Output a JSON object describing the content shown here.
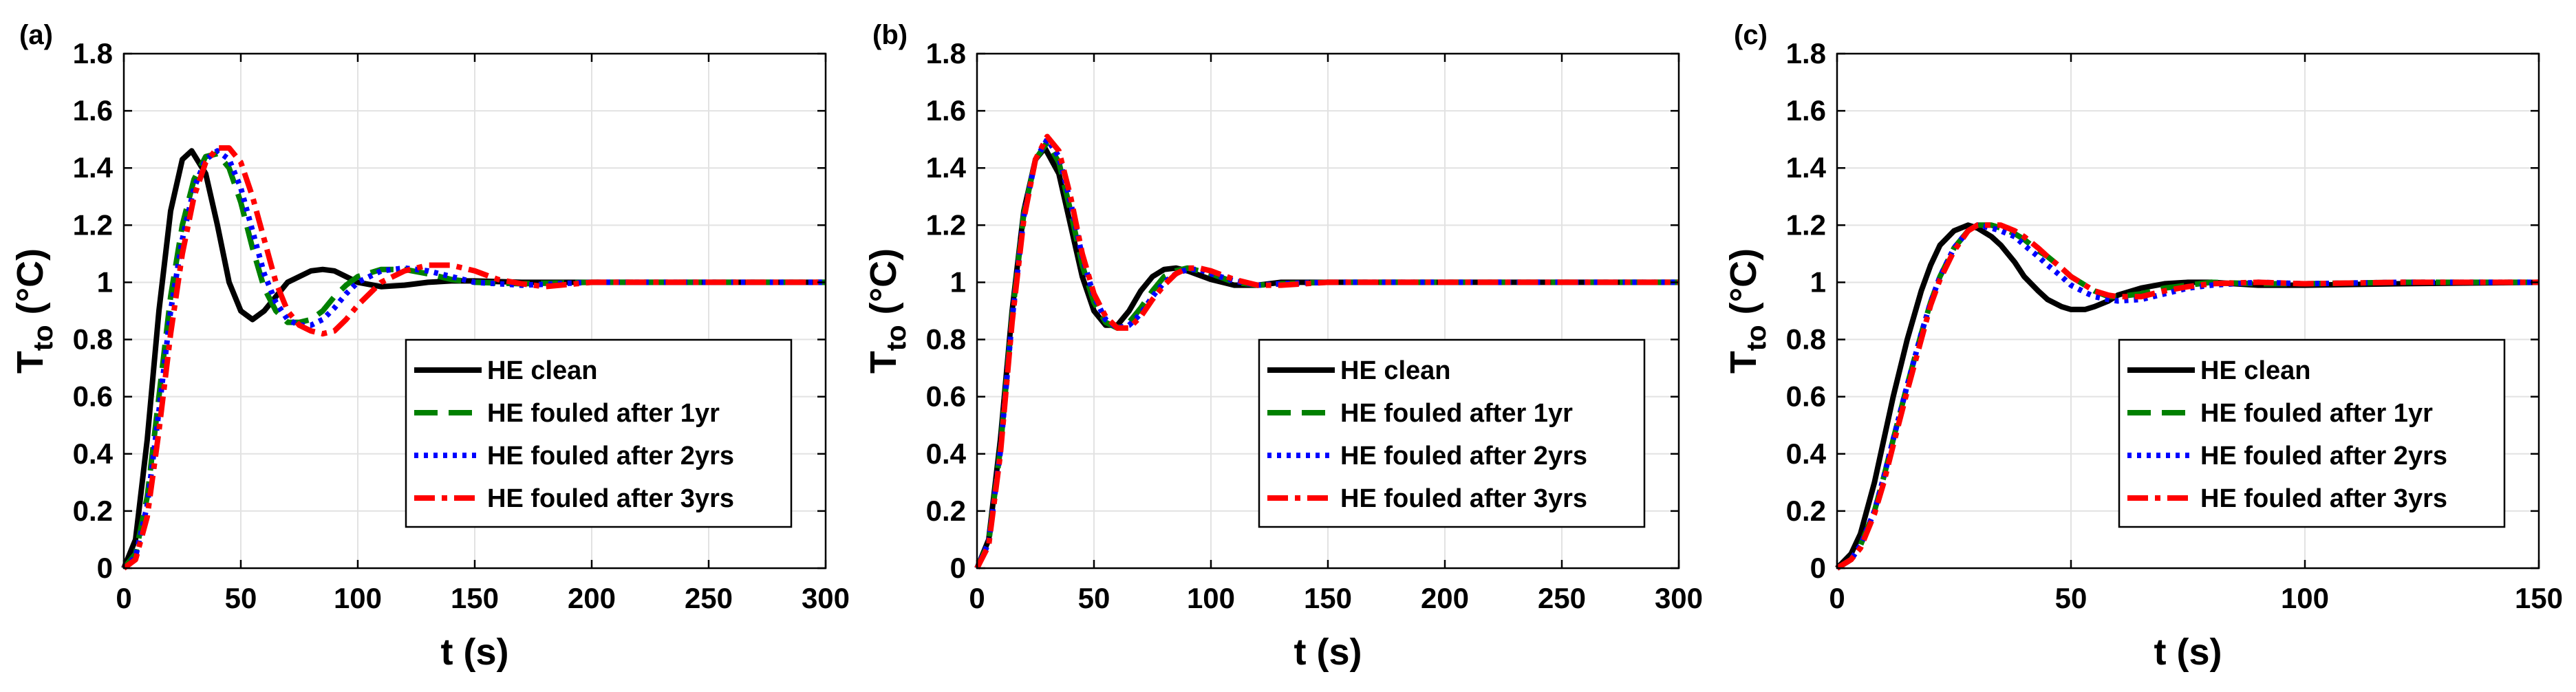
{
  "figure": {
    "series_styles": [
      {
        "key": "clean",
        "color": "#000000",
        "dash": "none"
      },
      {
        "key": "y1",
        "color": "#008000",
        "dash": "long-dash"
      },
      {
        "key": "y2",
        "color": "#0000ff",
        "dash": "dotted"
      },
      {
        "key": "y3",
        "color": "#ff0000",
        "dash": "dash-dot"
      }
    ]
  },
  "chart_data": [
    {
      "type": "line",
      "panel_label": "(a)",
      "xlabel": "t (s)",
      "ylabel": "T",
      "ylabel_sub": "to",
      "ylabel_unit": "(°C)",
      "xlim": [
        0,
        300
      ],
      "ylim": [
        0,
        1.8
      ],
      "xticks": [
        0,
        50,
        100,
        150,
        200,
        250,
        300
      ],
      "yticks": [
        0,
        0.2,
        0.4,
        0.6,
        0.8,
        1,
        1.2,
        1.4,
        1.6,
        1.8
      ],
      "grid": true,
      "legend_position": "bottom-right",
      "series": [
        {
          "name": "HE clean",
          "x": [
            0,
            5,
            10,
            15,
            20,
            25,
            29,
            35,
            40,
            45,
            50,
            55,
            60,
            65,
            70,
            80,
            85,
            90,
            95,
            100,
            110,
            120,
            130,
            140,
            150,
            170,
            200,
            250,
            300
          ],
          "y": [
            0,
            0.1,
            0.45,
            0.9,
            1.25,
            1.43,
            1.46,
            1.38,
            1.2,
            1.0,
            0.9,
            0.87,
            0.9,
            0.95,
            1.0,
            1.04,
            1.045,
            1.04,
            1.02,
            1.0,
            0.985,
            0.99,
            1.0,
            1.005,
            1.005,
            1.0,
            1.0,
            1.0,
            1.0
          ]
        },
        {
          "name": "HE fouled after 1yr",
          "x": [
            0,
            5,
            10,
            15,
            20,
            25,
            30,
            35,
            40,
            45,
            50,
            55,
            60,
            65,
            70,
            75,
            80,
            85,
            90,
            95,
            100,
            110,
            120,
            130,
            140,
            150,
            170,
            200,
            250,
            300
          ],
          "y": [
            0,
            0.05,
            0.25,
            0.6,
            0.95,
            1.2,
            1.36,
            1.44,
            1.45,
            1.4,
            1.28,
            1.12,
            0.98,
            0.9,
            0.86,
            0.86,
            0.87,
            0.9,
            0.95,
            0.99,
            1.02,
            1.045,
            1.045,
            1.03,
            1.01,
            1.0,
            0.995,
            1.0,
            1.0,
            1.0
          ]
        },
        {
          "name": "HE fouled after 2yrs",
          "x": [
            0,
            5,
            10,
            15,
            20,
            25,
            30,
            35,
            40,
            45,
            50,
            55,
            60,
            65,
            70,
            75,
            80,
            85,
            90,
            95,
            100,
            110,
            120,
            130,
            140,
            150,
            170,
            200,
            250,
            300
          ],
          "y": [
            0,
            0.04,
            0.22,
            0.55,
            0.9,
            1.15,
            1.33,
            1.43,
            1.46,
            1.43,
            1.33,
            1.18,
            1.03,
            0.93,
            0.87,
            0.85,
            0.85,
            0.87,
            0.91,
            0.96,
            1.0,
            1.04,
            1.05,
            1.04,
            1.02,
            1.0,
            0.99,
            1.0,
            1.0,
            1.0
          ]
        },
        {
          "name": "HE fouled after 3yrs",
          "x": [
            0,
            5,
            10,
            15,
            20,
            25,
            30,
            35,
            40,
            45,
            50,
            55,
            60,
            65,
            70,
            75,
            80,
            85,
            90,
            95,
            100,
            110,
            120,
            130,
            140,
            150,
            160,
            170,
            180,
            200,
            250,
            300
          ],
          "y": [
            0,
            0.03,
            0.18,
            0.48,
            0.82,
            1.1,
            1.3,
            1.42,
            1.47,
            1.47,
            1.42,
            1.3,
            1.15,
            1.0,
            0.9,
            0.85,
            0.83,
            0.82,
            0.83,
            0.87,
            0.92,
            1.0,
            1.04,
            1.06,
            1.06,
            1.04,
            1.01,
            0.995,
            0.985,
            1.0,
            1.0,
            1.0
          ]
        }
      ]
    },
    {
      "type": "line",
      "panel_label": "(b)",
      "xlabel": "t (s)",
      "ylabel": "T",
      "ylabel_sub": "to",
      "ylabel_unit": "(°C)",
      "xlim": [
        0,
        300
      ],
      "ylim": [
        0,
        1.8
      ],
      "xticks": [
        0,
        50,
        100,
        150,
        200,
        250,
        300
      ],
      "yticks": [
        0,
        0.2,
        0.4,
        0.6,
        0.8,
        1,
        1.2,
        1.4,
        1.6,
        1.8
      ],
      "grid": true,
      "legend_position": "bottom-right",
      "series": [
        {
          "name": "HE clean",
          "x": [
            0,
            5,
            10,
            15,
            20,
            25,
            29,
            35,
            40,
            45,
            50,
            55,
            60,
            65,
            70,
            75,
            80,
            85,
            90,
            100,
            110,
            120,
            130,
            150,
            200,
            250,
            300
          ],
          "y": [
            0,
            0.1,
            0.45,
            0.9,
            1.25,
            1.43,
            1.47,
            1.38,
            1.2,
            1.02,
            0.9,
            0.85,
            0.85,
            0.9,
            0.97,
            1.02,
            1.045,
            1.05,
            1.04,
            1.01,
            0.99,
            0.99,
            1.0,
            1.0,
            1.0,
            1.0,
            1.0
          ]
        },
        {
          "name": "HE fouled after 1yr",
          "x": [
            0,
            5,
            10,
            15,
            20,
            25,
            30,
            35,
            40,
            45,
            50,
            55,
            60,
            65,
            70,
            75,
            80,
            85,
            90,
            95,
            100,
            110,
            120,
            130,
            150,
            200,
            250,
            300
          ],
          "y": [
            0,
            0.09,
            0.42,
            0.88,
            1.24,
            1.43,
            1.49,
            1.42,
            1.25,
            1.06,
            0.93,
            0.86,
            0.84,
            0.86,
            0.91,
            0.97,
            1.02,
            1.04,
            1.05,
            1.04,
            1.03,
            1.0,
            0.99,
            0.995,
            1.0,
            1.0,
            1.0,
            1.0
          ]
        },
        {
          "name": "HE fouled after 2yrs",
          "x": [
            0,
            5,
            10,
            15,
            20,
            25,
            30,
            35,
            40,
            45,
            50,
            55,
            60,
            65,
            70,
            75,
            80,
            85,
            90,
            95,
            100,
            110,
            120,
            130,
            150,
            200,
            250,
            300
          ],
          "y": [
            0,
            0.09,
            0.41,
            0.87,
            1.23,
            1.43,
            1.5,
            1.44,
            1.28,
            1.09,
            0.95,
            0.87,
            0.84,
            0.85,
            0.89,
            0.95,
            1.0,
            1.03,
            1.045,
            1.045,
            1.03,
            1.005,
            0.99,
            0.995,
            1.0,
            1.0,
            1.0,
            1.0
          ]
        },
        {
          "name": "HE fouled after 3yrs",
          "x": [
            0,
            5,
            10,
            15,
            20,
            25,
            30,
            35,
            40,
            45,
            50,
            55,
            60,
            65,
            70,
            75,
            80,
            85,
            90,
            95,
            100,
            110,
            120,
            130,
            150,
            200,
            250,
            300
          ],
          "y": [
            0,
            0.08,
            0.4,
            0.86,
            1.22,
            1.43,
            1.51,
            1.46,
            1.3,
            1.1,
            0.96,
            0.88,
            0.84,
            0.84,
            0.88,
            0.94,
            0.99,
            1.03,
            1.05,
            1.05,
            1.04,
            1.01,
            0.99,
            0.99,
            1.0,
            1.0,
            1.0,
            1.0
          ]
        }
      ]
    },
    {
      "type": "line",
      "panel_label": "(c)",
      "xlabel": "t (s)",
      "ylabel": "T",
      "ylabel_sub": "to",
      "ylabel_unit": "(°C)",
      "xlim": [
        0,
        150
      ],
      "ylim": [
        0,
        1.8
      ],
      "xticks": [
        0,
        50,
        100,
        150
      ],
      "yticks": [
        0,
        0.2,
        0.4,
        0.6,
        0.8,
        1,
        1.2,
        1.4,
        1.6,
        1.8
      ],
      "grid": true,
      "legend_position": "bottom-right",
      "series": [
        {
          "name": "HE clean",
          "x": [
            0,
            3,
            5,
            8,
            10,
            12,
            15,
            18,
            20,
            22,
            25,
            28,
            30,
            33,
            35,
            38,
            40,
            43,
            45,
            48,
            50,
            53,
            55,
            58,
            60,
            65,
            70,
            75,
            80,
            90,
            100,
            120,
            150
          ],
          "y": [
            0,
            0.05,
            0.12,
            0.3,
            0.45,
            0.6,
            0.8,
            0.97,
            1.06,
            1.13,
            1.18,
            1.2,
            1.19,
            1.16,
            1.13,
            1.07,
            1.02,
            0.97,
            0.94,
            0.915,
            0.905,
            0.905,
            0.915,
            0.935,
            0.955,
            0.98,
            0.995,
            1.0,
            1.0,
            0.99,
            0.99,
            0.995,
            1.0
          ]
        },
        {
          "name": "HE fouled after 1yr",
          "x": [
            0,
            3,
            5,
            8,
            10,
            12,
            15,
            18,
            20,
            22,
            25,
            28,
            30,
            33,
            35,
            38,
            40,
            43,
            45,
            48,
            50,
            53,
            55,
            58,
            60,
            65,
            70,
            75,
            80,
            90,
            100,
            120,
            150
          ],
          "y": [
            0,
            0.03,
            0.08,
            0.2,
            0.32,
            0.45,
            0.64,
            0.82,
            0.93,
            1.02,
            1.12,
            1.18,
            1.2,
            1.2,
            1.19,
            1.17,
            1.15,
            1.11,
            1.09,
            1.05,
            1.02,
            0.99,
            0.97,
            0.95,
            0.95,
            0.96,
            0.98,
            0.99,
            1.0,
            0.995,
            0.995,
            1.0,
            1.0
          ]
        },
        {
          "name": "HE fouled after 2yrs",
          "x": [
            0,
            3,
            5,
            8,
            10,
            12,
            15,
            18,
            20,
            22,
            25,
            28,
            30,
            33,
            35,
            38,
            40,
            43,
            45,
            48,
            50,
            53,
            55,
            58,
            60,
            65,
            70,
            75,
            80,
            90,
            100,
            120,
            150
          ],
          "y": [
            0,
            0.03,
            0.08,
            0.2,
            0.32,
            0.45,
            0.64,
            0.82,
            0.93,
            1.02,
            1.12,
            1.18,
            1.2,
            1.19,
            1.18,
            1.16,
            1.13,
            1.09,
            1.06,
            1.02,
            0.99,
            0.965,
            0.95,
            0.94,
            0.935,
            0.94,
            0.96,
            0.98,
            0.99,
            1.0,
            0.995,
            1.0,
            1.0
          ]
        },
        {
          "name": "HE fouled after 3yrs",
          "x": [
            0,
            3,
            5,
            8,
            10,
            12,
            15,
            18,
            20,
            22,
            25,
            28,
            30,
            33,
            35,
            38,
            40,
            43,
            45,
            48,
            50,
            53,
            55,
            58,
            60,
            65,
            70,
            75,
            80,
            90,
            100,
            120,
            150
          ],
          "y": [
            0,
            0.03,
            0.07,
            0.19,
            0.3,
            0.43,
            0.62,
            0.8,
            0.92,
            1.01,
            1.11,
            1.18,
            1.2,
            1.2,
            1.2,
            1.18,
            1.16,
            1.12,
            1.09,
            1.05,
            1.02,
            0.99,
            0.97,
            0.955,
            0.95,
            0.95,
            0.97,
            0.985,
            0.995,
            1.0,
            0.995,
            1.0,
            1.0
          ]
        }
      ]
    }
  ]
}
